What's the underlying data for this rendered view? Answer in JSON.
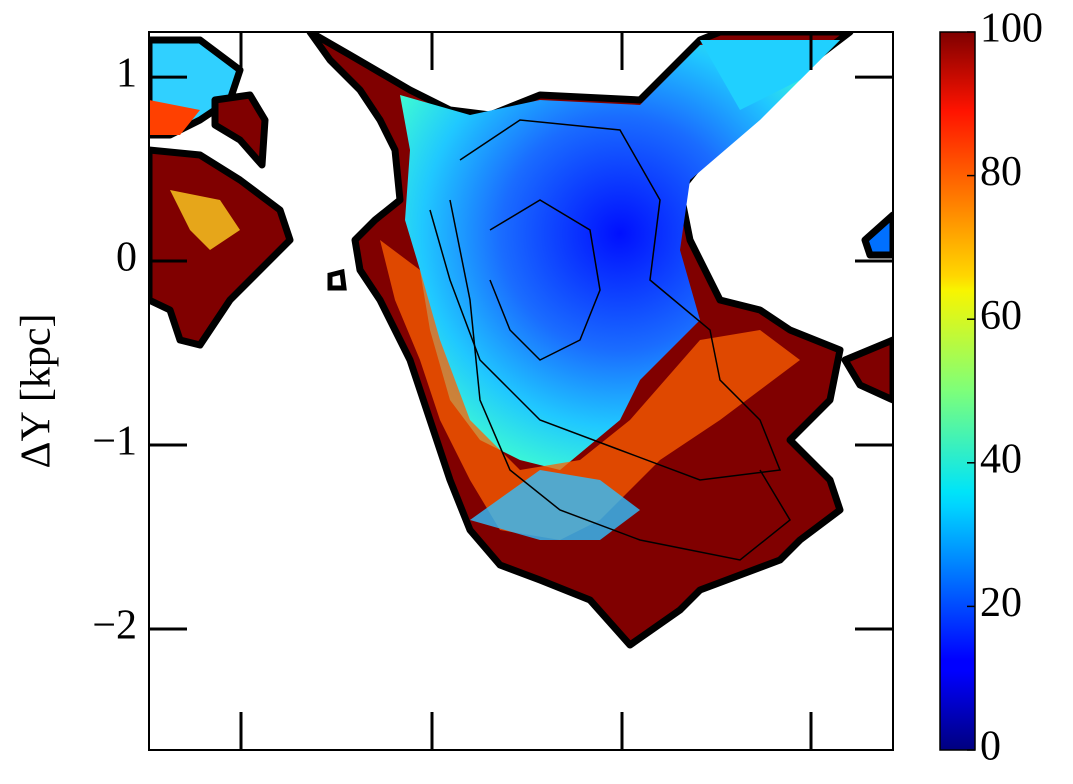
{
  "chart_data": {
    "type": "heatmap",
    "ylabel": "ΔY [kpc]",
    "ylim": [
      -2.658,
      1.245
    ],
    "yticks": [
      {
        "value": -2,
        "label": "−2"
      },
      {
        "value": -1,
        "label": "−1"
      },
      0,
      1
    ],
    "colormap": "jet",
    "clim": [
      0,
      100
    ],
    "cticks": [
      0,
      20,
      40,
      60,
      80,
      100
    ]
  }
}
